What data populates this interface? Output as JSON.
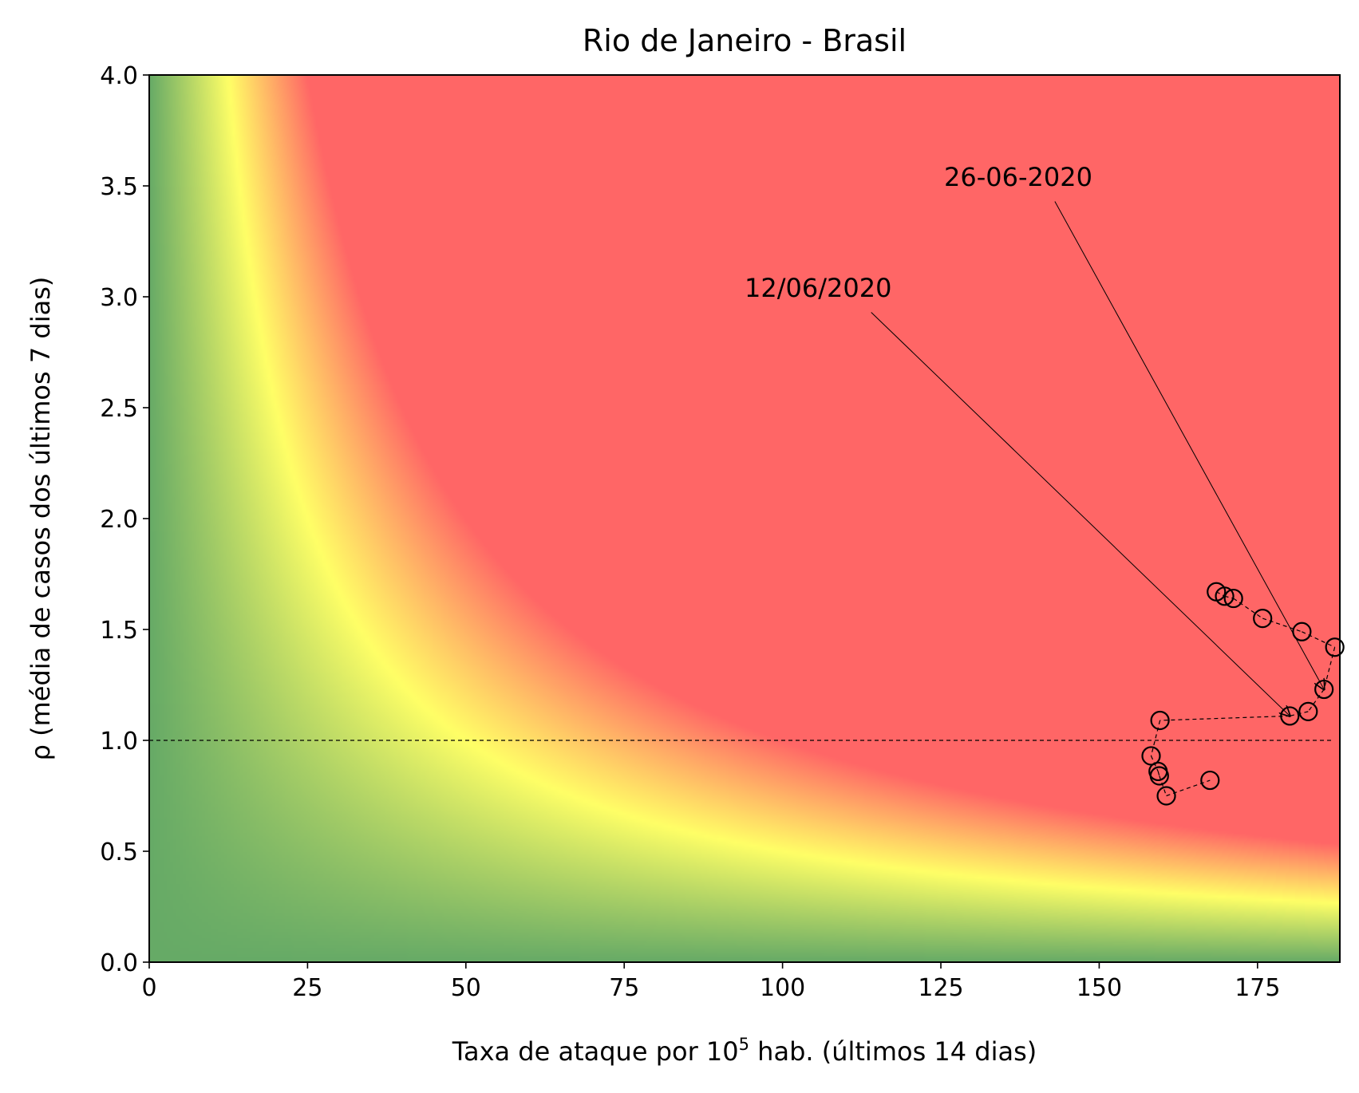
{
  "chart_data": {
    "type": "scatter",
    "title": "Rio de Janeiro - Brasil",
    "xlabel_main": "Taxa de ataque por 10",
    "xlabel_sup": "5",
    "xlabel_rest": " hab. (últimos 14 dias)",
    "ylabel": "ρ (média de casos dos últimos 7 dias)",
    "xlim": [
      0,
      188
    ],
    "ylim": [
      0,
      4.0
    ],
    "xticks": [
      0,
      25,
      50,
      75,
      100,
      125,
      150,
      175
    ],
    "xtick_labels": [
      "0",
      "25",
      "50",
      "75",
      "100",
      "125",
      "150",
      "175"
    ],
    "yticks": [
      0.0,
      0.5,
      1.0,
      1.5,
      2.0,
      2.5,
      3.0,
      3.5,
      4.0
    ],
    "ytick_labels": [
      "0.0",
      "0.5",
      "1.0",
      "1.5",
      "2.0",
      "2.5",
      "3.0",
      "3.5",
      "4.0"
    ],
    "background": {
      "type": "heatmap",
      "function": "x*y",
      "colors": [
        "#66aa66",
        "#ffff66",
        "#ff6666"
      ],
      "color_stops": [
        0,
        50,
        100
      ]
    },
    "reference_line": {
      "y": 1.0,
      "style": "dashed",
      "color": "#000000"
    },
    "series": [
      {
        "marker": "open-circle",
        "line": "dashed",
        "points": [
          {
            "x": 168.5,
            "y": 1.67
          },
          {
            "x": 169.8,
            "y": 1.65
          },
          {
            "x": 171.2,
            "y": 1.64
          },
          {
            "x": 175.8,
            "y": 1.55
          },
          {
            "x": 182.0,
            "y": 1.49
          },
          {
            "x": 187.2,
            "y": 1.42
          },
          {
            "x": 185.5,
            "y": 1.23
          },
          {
            "x": 183.0,
            "y": 1.13
          },
          {
            "x": 180.1,
            "y": 1.11
          },
          {
            "x": 159.6,
            "y": 1.09
          },
          {
            "x": 158.2,
            "y": 0.93
          },
          {
            "x": 159.3,
            "y": 0.86
          },
          {
            "x": 159.5,
            "y": 0.84
          },
          {
            "x": 160.6,
            "y": 0.75
          },
          {
            "x": 167.5,
            "y": 0.82
          }
        ]
      }
    ],
    "annotations": [
      {
        "text": "12/06/2020",
        "text_x": 94,
        "text_y": 3.0,
        "arrow_start": [
          114,
          2.93
        ],
        "arrow_to": [
          180.1,
          1.11
        ]
      },
      {
        "text": "26-06-2020",
        "text_x": 125.5,
        "text_y": 3.5,
        "arrow_start": [
          143,
          3.43
        ],
        "arrow_to": [
          185.5,
          1.23
        ]
      }
    ]
  }
}
